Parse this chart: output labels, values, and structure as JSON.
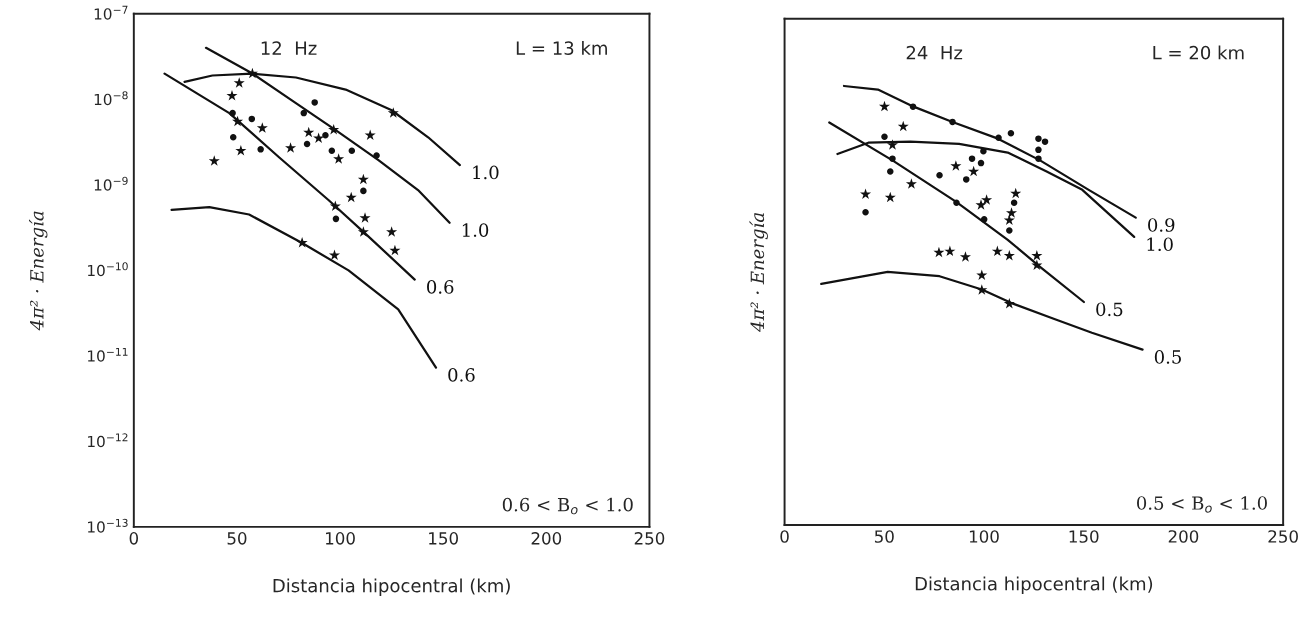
{
  "chart_data": [
    {
      "type": "scatter",
      "xlabel": "Distancia hipocentral (km)",
      "ylabel": "4π² · Energía",
      "log": "y",
      "grid": false,
      "xlim": [
        0,
        250
      ],
      "ylim": [
        1e-13,
        1e-07
      ],
      "xticks": [
        0,
        50,
        100,
        150,
        200,
        250
      ],
      "yticks": [
        {
          "value": 1e-07,
          "label": "10$^{−7}$"
        },
        {
          "value": 1e-08,
          "label": "10$^{−8}$"
        },
        {
          "value": 1e-09,
          "label": "10$^{−9}$"
        },
        {
          "value": 1e-10,
          "label": "10$^{−10}$"
        },
        {
          "value": 1e-11,
          "label": "10$^{−11}$"
        },
        {
          "value": 1e-12,
          "label": "10$^{−12}$"
        },
        {
          "value": 1e-13,
          "label": "10$^{−13}$"
        }
      ],
      "annotations": [
        "12  Hz",
        "L = 13 km",
        "0.6 < B$_{o}$ < 1.0"
      ],
      "series": [
        {
          "type": "line",
          "name": "1.0",
          "color": "#111111",
          "x": [
            24.6,
            38.1,
            57.3,
            78.6,
            102.7,
            124.8,
            142.7,
            158.1
          ],
          "values": [
            1.6e-08,
            1.9e-08,
            2e-08,
            1.8e-08,
            1.3e-08,
            7.5e-09,
            3.6e-09,
            1.7e-09
          ]
        },
        {
          "type": "line",
          "name": "1.0",
          "color": "#111111",
          "x": [
            35.0,
            57.5,
            78.4,
            97.7,
            118.6,
            137.8,
            153.1
          ],
          "values": [
            4e-08,
            2e-08,
            9.1e-09,
            4.4e-09,
            1.95e-09,
            8.7e-10,
            3.6e-10
          ]
        },
        {
          "type": "line",
          "name": "0.6",
          "color": "#111111",
          "x": [
            14.9,
            46.3,
            70.4,
            94.5,
            113.7,
            136.2
          ],
          "values": [
            2e-08,
            6.9e-09,
            2.1e-09,
            6.6e-10,
            2.5e-10,
            7.8e-11
          ]
        },
        {
          "type": "line",
          "name": "0.6",
          "color": "#111111",
          "x": [
            18.3,
            36.6,
            55.9,
            81.4,
            104.1,
            128.2,
            146.5
          ],
          "values": [
            5.1e-10,
            5.5e-10,
            4.5e-10,
            2.1e-10,
            1e-10,
            3.5e-11,
            7.3e-12
          ]
        },
        {
          "marker": "star",
          "color": "#111111",
          "x": [
            51.1,
            47.6,
            50.3,
            62.3,
            51.9,
            39.0,
            84.8,
            89.6,
            96.9,
            76.0,
            99.3,
            114.6,
            111.3,
            105.4,
            97.7,
            112.1,
            111.3,
            125.0,
            126.6,
            97.3,
            81.6,
            125.8,
            57.5
          ],
          "values": [
            1.55e-08,
            1.1e-08,
            5.5e-09,
            4.6e-09,
            2.5e-09,
            1.9e-09,
            4.1e-09,
            3.5e-09,
            4.4e-09,
            2.7e-09,
            2e-09,
            3.8e-09,
            1.15e-09,
            7.1e-10,
            5.6e-10,
            4.1e-10,
            2.8e-10,
            2.8e-10,
            1.7e-10,
            1.5e-10,
            2.1e-10,
            6.9e-09,
            2e-08
          ]
        },
        {
          "marker": "circle",
          "color": "#111111",
          "x": [
            47.9,
            57.2,
            48.2,
            61.5,
            87.7,
            82.4,
            84.0,
            92.9,
            96.0,
            105.7,
            117.7,
            111.3,
            98.0
          ],
          "values": [
            6.9e-09,
            5.9e-09,
            3.6e-09,
            2.6e-09,
            9.2e-09,
            6.9e-09,
            3e-09,
            3.8e-09,
            2.5e-09,
            2.5e-09,
            2.2e-09,
            8.5e-10,
            4e-10
          ]
        }
      ]
    },
    {
      "type": "scatter",
      "xlabel": "Distancia hipocentral (km)",
      "ylabel": "4π² · Energía",
      "log": "y",
      "grid": false,
      "tick_labels": "x",
      "xlim": [
        0,
        250
      ],
      "ylim": [
        1e-13,
        1e-07
      ],
      "xticks": [
        0,
        50,
        100,
        150,
        200,
        250
      ],
      "yticks": [
        {
          "value": 1e-08,
          "label": null
        },
        {
          "value": 1e-09,
          "label": null
        },
        {
          "value": 1e-10,
          "label": null
        },
        {
          "value": 1e-11,
          "label": null
        },
        {
          "value": 1e-12,
          "label": null
        }
      ],
      "annotations": [
        "24  Hz",
        "L = 20 km",
        "0.5 < B$_{o}$ < 1.0"
      ],
      "series": [
        {
          "type": "line",
          "name": "0.9",
          "color": "#111111",
          "x": [
            29.8,
            46.8,
            64.7,
            84.2,
            107.0,
            128.1,
            152.5,
            176.1
          ],
          "values": [
            1.6e-08,
            1.45e-08,
            9.1e-09,
            6e-09,
            3.8e-09,
            2.1e-09,
            9.4e-10,
            4.4e-10
          ]
        },
        {
          "type": "line",
          "name": "1.0",
          "color": "#111111",
          "x": [
            26.5,
            42.0,
            63.1,
            87.5,
            111.9,
            131.4,
            149.3,
            175.3
          ],
          "values": [
            2.5e-09,
            3.4e-09,
            3.5e-09,
            3.3e-09,
            2.6e-09,
            1.55e-09,
            9.4e-10,
            2.6e-10
          ]
        },
        {
          "type": "line",
          "name": "0.5",
          "color": "#111111",
          "x": [
            22.4,
            54.1,
            85.9,
            111.9,
            128.1,
            150.1
          ],
          "values": [
            5.9e-09,
            2.1e-09,
            6.8e-10,
            2.4e-10,
            1.15e-10,
            4.4e-11
          ]
        },
        {
          "type": "line",
          "name": "0.5",
          "color": "#111111",
          "x": [
            18.4,
            51.7,
            77.7,
            98.9,
            113.5,
            134.6,
            154.1,
            179.5
          ],
          "values": [
            7.2e-11,
            1e-10,
            8.9e-11,
            6.2e-11,
            4.3e-11,
            2.8e-11,
            1.9e-11,
            1.2e-11
          ]
        },
        {
          "marker": "star",
          "color": "#111111",
          "x": [
            50.1,
            59.5,
            54.1,
            63.6,
            40.6,
            53.0,
            85.9,
            94.8,
            98.5,
            101.3,
            115.9,
            113.8,
            112.7,
            98.9,
            98.9,
            112.7,
            77.4,
            82.9,
            90.7,
            106.7,
            112.7,
            126.5,
            126.5
          ],
          "values": [
            9.1e-09,
            5.3e-09,
            3.2e-09,
            1.1e-09,
            8.3e-10,
            7.6e-10,
            1.8e-09,
            1.55e-09,
            6.2e-10,
            7.1e-10,
            8.5e-10,
            5e-10,
            4.1e-10,
            9.1e-11,
            6.1e-11,
            4.2e-11,
            1.7e-10,
            1.75e-10,
            1.5e-10,
            1.75e-10,
            1.55e-10,
            1.55e-10,
            1.2e-10
          ]
        },
        {
          "marker": "circle",
          "color": "#111111",
          "x": [
            64.4,
            84.2,
            50.1,
            54.1,
            53.0,
            77.7,
            94.0,
            98.5,
            91.1,
            99.7,
            107.3,
            113.5,
            127.3,
            130.6,
            127.3,
            127.3,
            40.6,
            86.2,
            100.1,
            112.7,
            115.1
          ],
          "values": [
            9.1e-09,
            6e-09,
            4e-09,
            2.2e-09,
            1.55e-09,
            1.4e-09,
            2.2e-09,
            1.95e-09,
            1.25e-09,
            2.7e-09,
            3.9e-09,
            4.4e-09,
            3.8e-09,
            3.5e-09,
            2.8e-09,
            2.2e-09,
            5.1e-10,
            6.6e-10,
            4.2e-10,
            3.1e-10,
            6.6e-10
          ]
        }
      ]
    }
  ]
}
